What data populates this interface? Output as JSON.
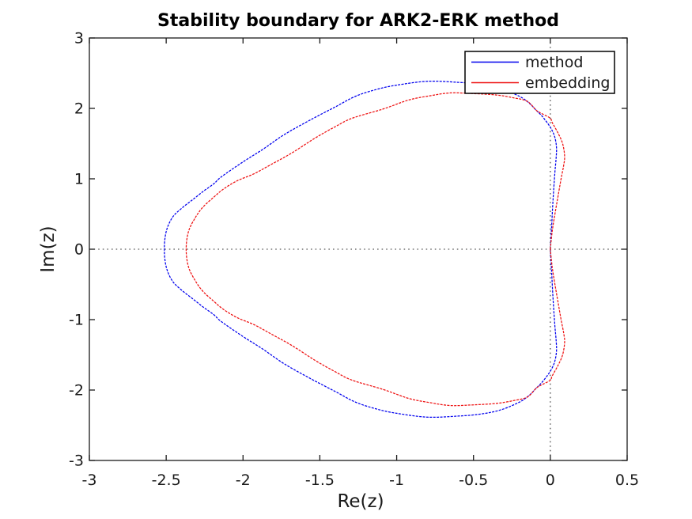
{
  "figure": {
    "background_color": "#ffffff",
    "axis_color": "#1a1a1a",
    "reference_line_color": "#2e2e2e"
  },
  "chart_data": {
    "type": "line",
    "title": "Stability boundary for ARK2-ERK method",
    "xlabel": "Re(z)",
    "ylabel": "Im(z)",
    "xlim": [
      -3,
      0.5
    ],
    "ylim": [
      -3,
      3
    ],
    "grid": false,
    "box": true,
    "tick_direction": "in",
    "xticks": {
      "values": [
        -3,
        -2.5,
        -2,
        -1.5,
        -1,
        -0.5,
        0,
        0.5
      ],
      "labels": [
        "-3",
        "-2.5",
        "-2",
        "-1.5",
        "-1",
        "-0.5",
        "0",
        "0.5"
      ]
    },
    "yticks": {
      "values": [
        3,
        2,
        1,
        0,
        -1,
        -2,
        -3
      ],
      "labels": [
        "3",
        "2",
        "1",
        "0",
        "-1",
        "-2",
        "-3"
      ]
    },
    "reference_lines": [
      {
        "orientation": "horizontal",
        "at": 0,
        "style": "dotted"
      },
      {
        "orientation": "vertical",
        "at": 0,
        "style": "dotted"
      }
    ],
    "legend": {
      "position": "top-right",
      "border": true,
      "background": "#ffffff"
    },
    "series": [
      {
        "name": "method",
        "color": "#0000ee",
        "points": [
          [
            0,
            0
          ],
          [
            0.008,
            0.3
          ],
          [
            0.015,
            0.6
          ],
          [
            0.022,
            0.85
          ],
          [
            0.03,
            1.1
          ],
          [
            0.038,
            1.3
          ],
          [
            0.04,
            1.45
          ],
          [
            0.028,
            1.6
          ],
          [
            0,
            1.732
          ],
          [
            -0.05,
            1.88
          ],
          [
            -0.09,
            1.97
          ],
          [
            -0.14,
            2.08
          ],
          [
            -0.2,
            2.17
          ],
          [
            -0.32,
            2.28
          ],
          [
            -0.45,
            2.34
          ],
          [
            -0.6,
            2.37
          ],
          [
            -0.8,
            2.385
          ],
          [
            -1.0,
            2.33
          ],
          [
            -1.13,
            2.27
          ],
          [
            -1.27,
            2.17
          ],
          [
            -1.4,
            2.02
          ],
          [
            -1.55,
            1.85
          ],
          [
            -1.73,
            1.63
          ],
          [
            -1.87,
            1.42
          ],
          [
            -2.0,
            1.24
          ],
          [
            -2.14,
            1.03
          ],
          [
            -2.19,
            0.93
          ],
          [
            -2.26,
            0.82
          ],
          [
            -2.33,
            0.7
          ],
          [
            -2.4,
            0.58
          ],
          [
            -2.46,
            0.45
          ],
          [
            -2.5,
            0.25
          ],
          [
            -2.512,
            0
          ],
          [
            -2.5,
            -0.25
          ],
          [
            -2.46,
            -0.45
          ],
          [
            -2.4,
            -0.58
          ],
          [
            -2.33,
            -0.7
          ],
          [
            -2.26,
            -0.82
          ],
          [
            -2.19,
            -0.93
          ],
          [
            -2.14,
            -1.03
          ],
          [
            -2.0,
            -1.24
          ],
          [
            -1.87,
            -1.42
          ],
          [
            -1.73,
            -1.63
          ],
          [
            -1.55,
            -1.85
          ],
          [
            -1.4,
            -2.02
          ],
          [
            -1.27,
            -2.17
          ],
          [
            -1.13,
            -2.27
          ],
          [
            -1.0,
            -2.33
          ],
          [
            -0.8,
            -2.385
          ],
          [
            -0.6,
            -2.37
          ],
          [
            -0.45,
            -2.34
          ],
          [
            -0.32,
            -2.28
          ],
          [
            -0.2,
            -2.17
          ],
          [
            -0.14,
            -2.08
          ],
          [
            -0.09,
            -1.97
          ],
          [
            -0.05,
            -1.88
          ],
          [
            0,
            -1.732
          ],
          [
            0.028,
            -1.6
          ],
          [
            0.04,
            -1.45
          ],
          [
            0.038,
            -1.3
          ],
          [
            0.03,
            -1.1
          ],
          [
            0.022,
            -0.85
          ],
          [
            0.015,
            -0.6
          ],
          [
            0.008,
            -0.3
          ],
          [
            0,
            0
          ]
        ]
      },
      {
        "name": "embedding",
        "color": "#ee1111",
        "points": [
          [
            0,
            0
          ],
          [
            0.012,
            0.25
          ],
          [
            0.03,
            0.5
          ],
          [
            0.05,
            0.75
          ],
          [
            0.07,
            1.0
          ],
          [
            0.086,
            1.18
          ],
          [
            0.093,
            1.32
          ],
          [
            0.08,
            1.5
          ],
          [
            0.05,
            1.65
          ],
          [
            0.012,
            1.8
          ],
          [
            0,
            1.86
          ],
          [
            -0.05,
            1.92
          ],
          [
            -0.09,
            1.97
          ],
          [
            -0.15,
            2.1
          ],
          [
            -0.24,
            2.15
          ],
          [
            -0.35,
            2.19
          ],
          [
            -0.5,
            2.21
          ],
          [
            -0.65,
            2.22
          ],
          [
            -0.78,
            2.18
          ],
          [
            -0.92,
            2.12
          ],
          [
            -1.09,
            1.99
          ],
          [
            -1.29,
            1.86
          ],
          [
            -1.4,
            1.74
          ],
          [
            -1.53,
            1.58
          ],
          [
            -1.68,
            1.37
          ],
          [
            -1.82,
            1.2
          ],
          [
            -1.93,
            1.07
          ],
          [
            -2.04,
            0.97
          ],
          [
            -2.13,
            0.85
          ],
          [
            -2.19,
            0.74
          ],
          [
            -2.26,
            0.6
          ],
          [
            -2.31,
            0.45
          ],
          [
            -2.355,
            0.25
          ],
          [
            -2.37,
            0
          ],
          [
            -2.355,
            -0.25
          ],
          [
            -2.31,
            -0.45
          ],
          [
            -2.26,
            -0.6
          ],
          [
            -2.19,
            -0.74
          ],
          [
            -2.13,
            -0.85
          ],
          [
            -2.04,
            -0.97
          ],
          [
            -1.93,
            -1.07
          ],
          [
            -1.82,
            -1.2
          ],
          [
            -1.68,
            -1.37
          ],
          [
            -1.53,
            -1.58
          ],
          [
            -1.4,
            -1.74
          ],
          [
            -1.29,
            -1.86
          ],
          [
            -1.09,
            -1.99
          ],
          [
            -0.92,
            -2.12
          ],
          [
            -0.78,
            -2.18
          ],
          [
            -0.65,
            -2.22
          ],
          [
            -0.5,
            -2.21
          ],
          [
            -0.35,
            -2.19
          ],
          [
            -0.24,
            -2.15
          ],
          [
            -0.15,
            -2.1
          ],
          [
            -0.09,
            -1.97
          ],
          [
            -0.05,
            -1.92
          ],
          [
            0,
            -1.86
          ],
          [
            0.012,
            -1.8
          ],
          [
            0.05,
            -1.65
          ],
          [
            0.08,
            -1.5
          ],
          [
            0.093,
            -1.32
          ],
          [
            0.086,
            -1.18
          ],
          [
            0.07,
            -1.0
          ],
          [
            0.05,
            -0.75
          ],
          [
            0.03,
            -0.5
          ],
          [
            0.012,
            -0.25
          ],
          [
            0,
            0
          ]
        ]
      }
    ]
  }
}
